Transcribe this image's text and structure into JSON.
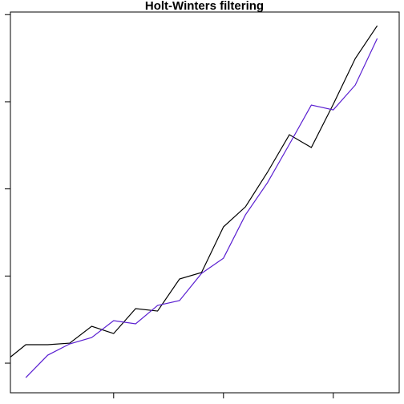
{
  "chart_data": {
    "type": "line",
    "title": "Holt-Winters filtering",
    "x": [
      0,
      1,
      2,
      3,
      4,
      5,
      6,
      7,
      8,
      9,
      10,
      11,
      12,
      13,
      14,
      15,
      16,
      17
    ],
    "series": [
      {
        "color": "#000000",
        "values": [
          10.09,
          12.12,
          12.12,
          12.3,
          14.23,
          13.4,
          16.26,
          15.98,
          19.66,
          20.4,
          25.64,
          27.94,
          31.9,
          36.22,
          34.75,
          39.72,
          44.96,
          48.73
        ]
      },
      {
        "color": "#5a1fd1",
        "values": [
          null,
          8.34,
          10.92,
          12.21,
          12.94,
          14.88,
          14.51,
          16.62,
          17.18,
          20.3,
          22.05,
          27.02,
          30.7,
          35.12,
          39.62,
          39.07,
          41.92,
          47.26
        ]
      }
    ],
    "xlim": [
      0.3,
      18
    ],
    "xticks": [
      5,
      10,
      15
    ],
    "ylim": [
      6.6,
      50.3
    ],
    "yticks": [
      10,
      20,
      30,
      40,
      50
    ]
  }
}
